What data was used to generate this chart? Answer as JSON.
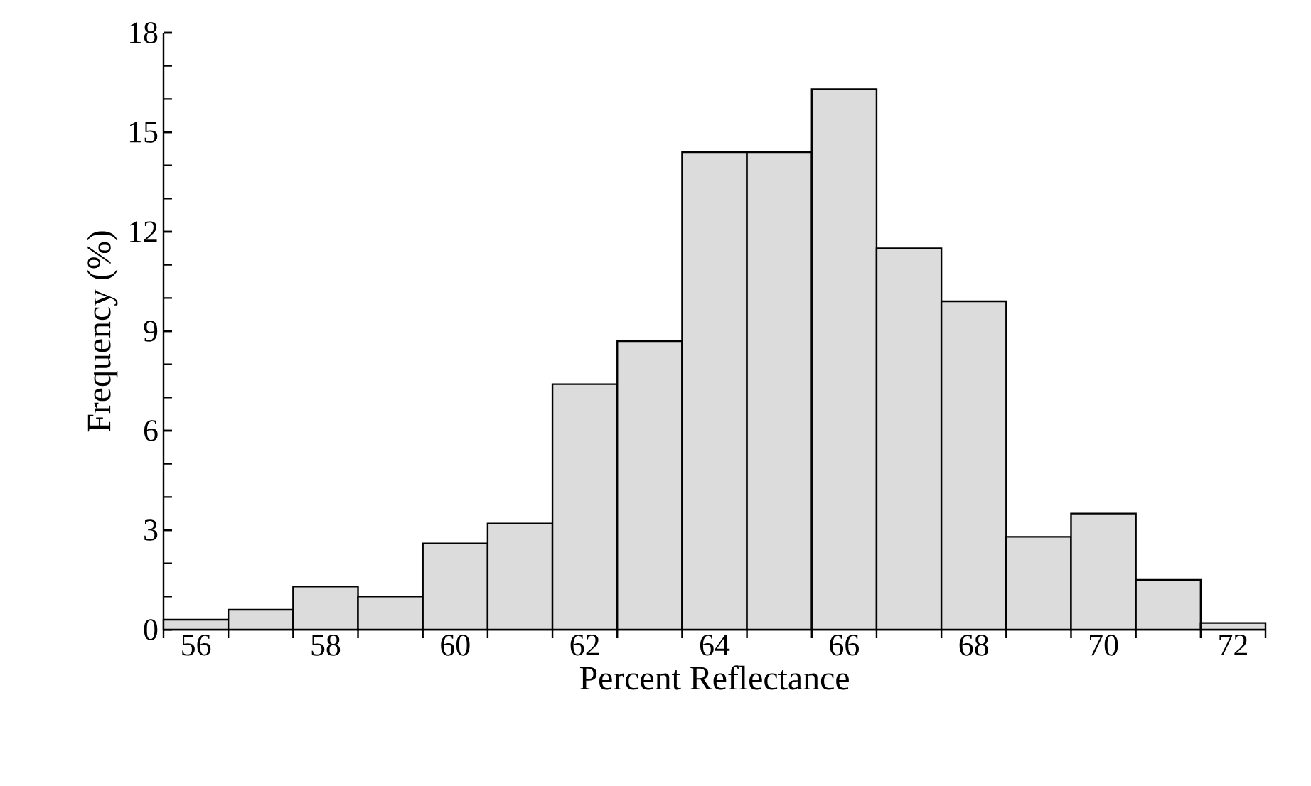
{
  "chart_data": {
    "type": "histogram",
    "xlabel": "Percent Reflectance",
    "ylabel": "Frequency (%)",
    "bins": [
      55.5,
      56.5,
      57.5,
      58.5,
      59.5,
      60.5,
      61.5,
      62.5,
      63.5,
      64.5,
      65.5,
      66.5,
      67.5,
      68.5,
      69.5,
      70.5,
      71.5,
      72.5
    ],
    "values": [
      0.3,
      0.6,
      1.3,
      1.0,
      2.6,
      3.2,
      7.4,
      8.7,
      14.4,
      14.4,
      16.3,
      11.5,
      9.9,
      2.8,
      3.5,
      1.5,
      0.2
    ],
    "color": "#dcdcdc",
    "xlim": [
      55.5,
      72.5
    ],
    "ylim": [
      0,
      18
    ],
    "xticks": [
      {
        "value": 55.5,
        "label": null
      },
      56,
      {
        "value": 56.5,
        "label": null
      },
      {
        "value": 57.5,
        "label": null
      },
      58,
      {
        "value": 58.5,
        "label": null
      },
      {
        "value": 59.5,
        "label": null
      },
      60,
      {
        "value": 60.5,
        "label": null
      },
      {
        "value": 61.5,
        "label": null
      },
      62,
      {
        "value": 62.5,
        "label": null
      },
      {
        "value": 63.5,
        "label": null
      },
      64,
      {
        "value": 64.5,
        "label": null
      },
      {
        "value": 65.5,
        "label": null
      },
      66,
      {
        "value": 66.5,
        "label": null
      },
      {
        "value": 67.5,
        "label": null
      },
      68,
      {
        "value": 68.5,
        "label": null
      },
      {
        "value": 69.5,
        "label": null
      },
      70,
      {
        "value": 70.5,
        "label": null
      },
      {
        "value": 71.5,
        "label": null
      },
      72,
      {
        "value": 72.5,
        "label": null
      }
    ],
    "yticks": [
      0,
      3,
      6,
      9,
      12,
      15,
      18
    ],
    "grid": false
  }
}
